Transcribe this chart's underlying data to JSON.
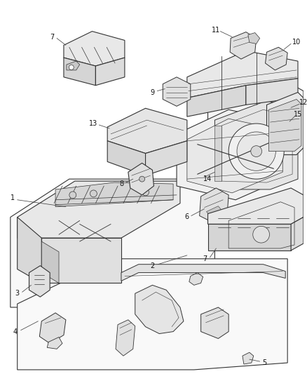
{
  "bg_color": "#ffffff",
  "line_color": "#333333",
  "light_fill": "#f0f0f0",
  "mid_fill": "#e0e0e0",
  "dark_fill": "#cccccc",
  "fig_width": 4.38,
  "fig_height": 5.33,
  "dpi": 100,
  "label_fs": 7.0,
  "leader_lw": 0.55,
  "part_lw": 0.8
}
